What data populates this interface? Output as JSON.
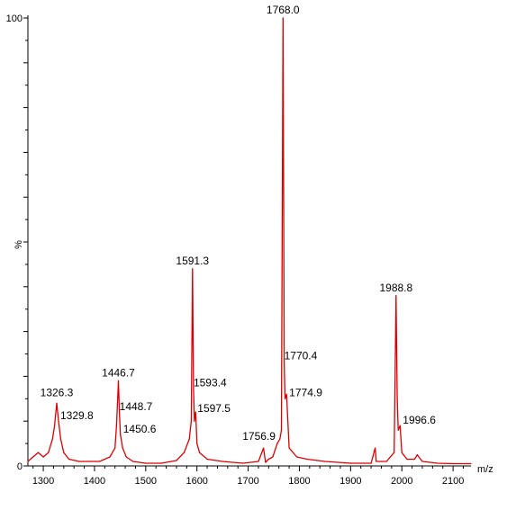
{
  "chart_data": {
    "type": "line",
    "title": "",
    "xlabel": "m/z",
    "ylabel": "%",
    "xlim": [
      1270,
      2135
    ],
    "ylim": [
      0,
      100
    ],
    "x_ticks": [
      "1300",
      "1400",
      "1500",
      "1600",
      "1700",
      "1800",
      "1900",
      "2000",
      "2100"
    ],
    "y_ticks": [
      "0",
      "100"
    ],
    "grid": false,
    "series_color": "#dd0000",
    "series": [
      {
        "x": [
          1270,
          1280,
          1290,
          1300,
          1310,
          1318,
          1322,
          1326.3,
          1329.8,
          1334,
          1340,
          1350,
          1370,
          1390,
          1410,
          1430,
          1440,
          1443,
          1446.7,
          1448.7,
          1450.6,
          1455,
          1462,
          1475,
          1500,
          1530,
          1560,
          1575,
          1585,
          1589,
          1591.3,
          1593.4,
          1595,
          1597.5,
          1600,
          1605,
          1620,
          1650,
          1690,
          1720,
          1730,
          1734,
          1740,
          1748,
          1756.9,
          1762,
          1765,
          1768.0,
          1770.4,
          1772,
          1774.9,
          1780,
          1795,
          1815,
          1850,
          1900,
          1940,
          1948,
          1950,
          1970,
          1985,
          1988.8,
          1991,
          1993,
          1996.6,
          2000,
          2010,
          2025,
          2030,
          2040,
          2070,
          2100,
          2135
        ],
        "y": [
          1,
          2,
          3,
          2,
          3,
          6,
          9,
          14,
          10,
          6,
          3,
          1.5,
          1,
          1,
          1,
          2,
          4,
          9,
          19,
          12,
          7,
          4,
          2,
          1,
          0.6,
          0.6,
          1.2,
          3,
          6,
          10,
          44,
          17,
          10,
          12,
          5,
          3,
          1.5,
          1,
          0.6,
          1,
          4,
          0.8,
          1.5,
          2,
          5,
          6,
          8,
          100,
          23,
          15,
          16,
          4,
          2,
          1.5,
          1,
          0.6,
          0.6,
          4,
          1,
          1,
          3,
          38,
          15,
          8,
          9,
          3,
          1.5,
          1.5,
          2.5,
          1,
          0.6,
          0.5,
          0.5
        ]
      }
    ],
    "peak_labels": [
      {
        "text": "1768.0",
        "x": 1768.0,
        "y": 100
      },
      {
        "text": "1591.3",
        "x": 1591.3,
        "y": 44
      },
      {
        "text": "1988.8",
        "x": 1988.8,
        "y": 38
      },
      {
        "text": "1770.4",
        "x": 1770.4,
        "y": 23
      },
      {
        "text": "1446.7",
        "x": 1446.7,
        "y": 19
      },
      {
        "text": "1593.4",
        "x": 1593.4,
        "y": 17
      },
      {
        "text": "1774.9",
        "x": 1774.9,
        "y": 16
      },
      {
        "text": "1448.7",
        "x": 1448.7,
        "y": 12
      },
      {
        "text": "1326.3",
        "x": 1326.3,
        "y": 14
      },
      {
        "text": "1597.5",
        "x": 1597.5,
        "y": 12
      },
      {
        "text": "1329.8",
        "x": 1329.8,
        "y": 10
      },
      {
        "text": "1996.6",
        "x": 1996.6,
        "y": 9
      },
      {
        "text": "1450.6",
        "x": 1450.6,
        "y": 7
      },
      {
        "text": "1756.9",
        "x": 1756.9,
        "y": 5
      }
    ]
  }
}
